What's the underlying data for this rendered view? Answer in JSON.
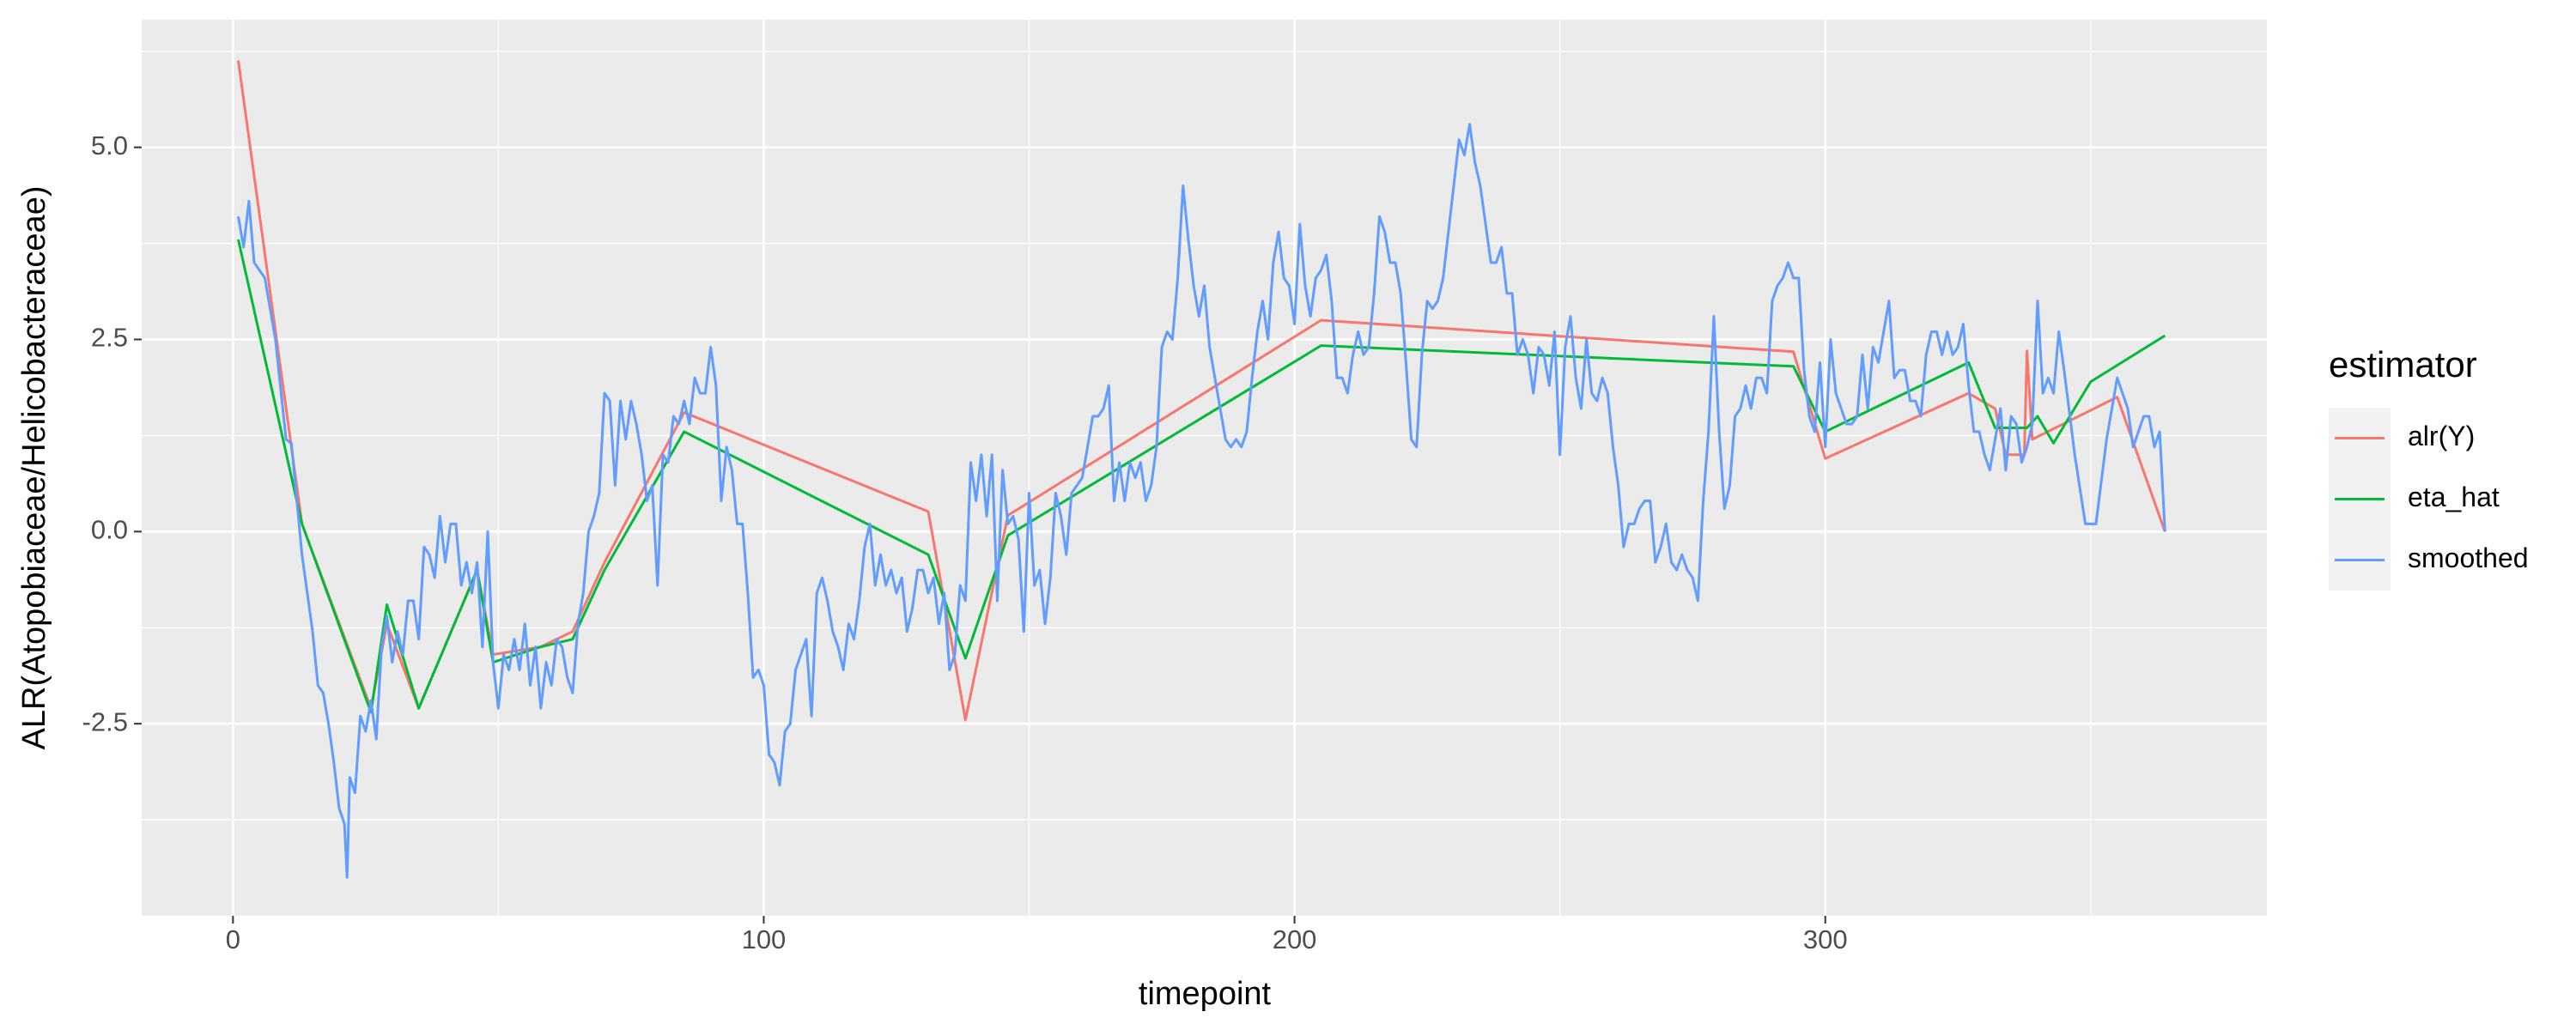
{
  "chart_data": {
    "type": "line",
    "x_label": "timepoint",
    "y_label": "ALR(Atopobiaceae/Helicobacteraceae)",
    "legend_title": "estimator",
    "legend_position": "right",
    "grid": true,
    "xlim": [
      -17.2,
      383.2
    ],
    "ylim": [
      -5.0,
      6.66
    ],
    "xticks": [
      0,
      100,
      200,
      300
    ],
    "yticks": [
      {
        "value": -2.5,
        "label": "-2.5"
      },
      {
        "value": 0,
        "label": "0.0"
      },
      {
        "value": 2.5,
        "label": "2.5"
      },
      {
        "value": 5,
        "label": "5.0"
      }
    ],
    "minor_xticks": [
      50,
      150,
      250,
      350
    ],
    "minor_yticks": [
      -3.75,
      -1.25,
      1.25,
      3.75,
      6.25
    ],
    "series": [
      {
        "name": "alr(Y)",
        "color": "#F8766D",
        "x": [
          1,
          13,
          26,
          29,
          35,
          46,
          49,
          58,
          64,
          70,
          85,
          131,
          138,
          146,
          205,
          294,
          300,
          327,
          332,
          334,
          337.5,
          338,
          339,
          355,
          364
        ],
        "values": [
          6.13,
          0.1,
          -2.3,
          -1.2,
          -2.3,
          -0.5,
          -1.6,
          -1.5,
          -1.3,
          -0.4,
          1.55,
          0.26,
          -2.45,
          0.21,
          2.75,
          2.34,
          0.95,
          1.8,
          1.6,
          1.0,
          1.0,
          2.35,
          1.2,
          1.75,
          0.0
        ]
      },
      {
        "name": "eta_hat",
        "color": "#00BA38",
        "x": [
          1,
          13,
          26,
          29,
          35,
          46,
          49,
          58,
          64,
          70,
          85,
          131,
          138,
          146,
          205,
          294,
          300,
          327,
          332,
          338,
          340,
          343,
          350,
          364
        ],
        "values": [
          3.8,
          0.1,
          -2.35,
          -0.95,
          -2.3,
          -0.5,
          -1.7,
          -1.5,
          -1.4,
          -0.5,
          1.3,
          -0.3,
          -1.65,
          -0.05,
          2.42,
          2.15,
          1.3,
          2.2,
          1.35,
          1.35,
          1.5,
          1.15,
          1.95,
          2.55
        ]
      },
      {
        "name": "smoothed",
        "color": "#619CFF",
        "x": [
          1,
          2,
          3,
          4,
          6,
          8,
          10,
          11,
          13,
          15,
          16,
          17,
          18,
          19,
          20,
          21,
          21.5,
          22,
          23,
          24,
          25,
          26,
          27,
          28,
          29,
          30,
          31,
          32,
          33,
          34,
          35,
          36,
          37,
          38,
          39,
          40,
          41,
          42,
          43,
          44,
          45,
          46,
          47,
          48,
          49,
          50,
          51,
          52,
          53,
          54,
          55,
          56,
          57,
          58,
          59,
          60,
          61,
          62,
          63,
          64,
          65,
          66,
          67,
          68,
          69,
          70,
          71,
          72,
          73,
          74,
          75,
          76,
          77,
          78,
          79,
          80,
          81,
          82,
          83,
          84,
          85,
          86,
          87,
          88,
          89,
          90,
          91,
          92,
          93,
          94,
          95,
          96,
          97,
          98,
          99,
          100,
          101,
          102,
          103,
          104,
          105,
          106,
          107,
          108,
          109,
          110,
          111,
          112,
          113,
          114,
          115,
          116,
          117,
          118,
          119,
          120,
          121,
          122,
          123,
          124,
          125,
          126,
          127,
          128,
          129,
          130,
          131,
          132,
          133,
          134,
          135,
          136,
          137,
          138,
          139,
          140,
          141,
          142,
          143,
          144,
          145,
          146,
          147,
          148,
          149,
          150,
          151,
          152,
          153,
          154,
          155,
          156,
          157,
          158,
          159,
          160,
          161,
          162,
          163,
          164,
          165,
          166,
          167,
          168,
          169,
          170,
          171,
          172,
          173,
          174,
          175,
          176,
          177,
          178,
          179,
          180,
          181,
          182,
          183,
          184,
          185,
          186,
          187,
          188,
          189,
          190,
          191,
          192,
          193,
          194,
          195,
          196,
          197,
          198,
          199,
          200,
          201,
          202,
          203,
          204,
          205,
          206,
          207,
          208,
          209,
          210,
          211,
          212,
          213,
          214,
          215,
          216,
          217,
          218,
          219,
          220,
          221,
          222,
          223,
          224,
          225,
          226,
          227,
          228,
          229,
          230,
          231,
          232,
          233,
          234,
          235,
          236,
          237,
          238,
          239,
          240,
          241,
          242,
          243,
          244,
          245,
          246,
          247,
          248,
          249,
          250,
          251,
          252,
          253,
          254,
          255,
          256,
          257,
          258,
          259,
          260,
          261,
          262,
          263,
          264,
          265,
          266,
          267,
          268,
          269,
          270,
          271,
          272,
          273,
          274,
          275,
          276,
          277,
          278,
          279,
          280,
          281,
          282,
          283,
          284,
          285,
          286,
          287,
          288,
          289,
          290,
          291,
          292,
          293,
          294,
          295,
          296,
          297,
          298,
          299,
          300,
          301,
          302,
          303,
          304,
          305,
          306,
          307,
          308,
          309,
          310,
          311,
          312,
          313,
          314,
          315,
          316,
          317,
          318,
          319,
          320,
          321,
          322,
          323,
          324,
          325,
          326,
          327,
          328,
          329,
          330,
          331,
          332,
          333,
          334,
          335,
          336,
          337,
          338,
          339,
          340,
          341,
          342,
          343,
          344,
          345,
          347,
          349,
          351,
          353,
          355,
          357,
          358,
          359,
          360,
          361,
          362,
          363,
          364
        ],
        "values": [
          4.1,
          3.7,
          4.3,
          3.5,
          3.3,
          2.5,
          1.2,
          1.15,
          -0.3,
          -1.3,
          -2.0,
          -2.1,
          -2.5,
          -3.0,
          -3.6,
          -3.8,
          -4.5,
          -3.2,
          -3.4,
          -2.4,
          -2.6,
          -2.2,
          -2.7,
          -1.5,
          -1.1,
          -1.7,
          -1.3,
          -1.6,
          -0.9,
          -0.9,
          -1.4,
          -0.2,
          -0.3,
          -0.6,
          0.2,
          -0.4,
          0.1,
          0.1,
          -0.7,
          -0.4,
          -0.8,
          -0.4,
          -1.5,
          0.0,
          -1.7,
          -2.3,
          -1.6,
          -1.8,
          -1.4,
          -1.8,
          -1.2,
          -2.0,
          -1.5,
          -2.3,
          -1.7,
          -2.0,
          -1.4,
          -1.5,
          -1.9,
          -2.1,
          -1.2,
          -0.8,
          0.0,
          0.2,
          0.5,
          1.8,
          1.7,
          0.6,
          1.7,
          1.2,
          1.7,
          1.4,
          1.0,
          0.4,
          0.6,
          -0.7,
          1.0,
          0.9,
          1.5,
          1.4,
          1.7,
          1.4,
          2.0,
          1.8,
          1.8,
          2.4,
          1.9,
          0.4,
          1.1,
          0.8,
          0.1,
          0.1,
          -0.8,
          -1.9,
          -1.8,
          -2.0,
          -2.9,
          -3.0,
          -3.3,
          -2.6,
          -2.5,
          -1.8,
          -1.6,
          -1.4,
          -2.4,
          -0.8,
          -0.6,
          -0.9,
          -1.3,
          -1.5,
          -1.8,
          -1.2,
          -1.4,
          -0.9,
          -0.2,
          0.1,
          -0.7,
          -0.3,
          -0.7,
          -0.5,
          -0.8,
          -0.6,
          -1.3,
          -1.0,
          -0.5,
          -0.5,
          -0.8,
          -0.6,
          -1.2,
          -0.8,
          -1.8,
          -1.6,
          -0.7,
          -0.9,
          0.9,
          0.4,
          1.0,
          0.2,
          1.0,
          -0.9,
          0.8,
          0.1,
          0.2,
          -0.1,
          -1.3,
          0.5,
          -0.7,
          -0.5,
          -1.2,
          -0.6,
          0.5,
          0.2,
          -0.3,
          0.5,
          0.6,
          0.7,
          1.1,
          1.5,
          1.5,
          1.6,
          1.9,
          0.4,
          0.9,
          0.4,
          0.9,
          0.7,
          0.9,
          0.4,
          0.6,
          1.1,
          2.4,
          2.6,
          2.5,
          3.3,
          4.5,
          3.8,
          3.2,
          2.8,
          3.2,
          2.4,
          2.0,
          1.6,
          1.2,
          1.1,
          1.2,
          1.1,
          1.3,
          2.0,
          2.6,
          3.0,
          2.5,
          3.5,
          3.9,
          3.3,
          3.2,
          2.7,
          4.0,
          3.2,
          2.8,
          3.3,
          3.4,
          3.6,
          3.0,
          2.0,
          2.0,
          1.8,
          2.3,
          2.6,
          2.3,
          2.4,
          3.1,
          4.1,
          3.9,
          3.5,
          3.5,
          3.1,
          2.2,
          1.2,
          1.1,
          2.3,
          3.0,
          2.9,
          3.0,
          3.3,
          3.9,
          4.5,
          5.1,
          4.9,
          5.3,
          4.8,
          4.5,
          4.0,
          3.5,
          3.5,
          3.7,
          3.1,
          3.1,
          2.3,
          2.5,
          2.3,
          1.8,
          2.4,
          2.3,
          1.9,
          2.6,
          1.0,
          2.4,
          2.8,
          2.0,
          1.6,
          2.5,
          1.8,
          1.7,
          2.0,
          1.8,
          1.1,
          0.6,
          -0.2,
          0.1,
          0.1,
          0.3,
          0.4,
          0.4,
          -0.4,
          -0.2,
          0.1,
          -0.4,
          -0.5,
          -0.3,
          -0.5,
          -0.6,
          -0.9,
          0.4,
          1.3,
          2.8,
          1.3,
          0.3,
          0.6,
          1.5,
          1.6,
          1.9,
          1.6,
          2.0,
          2.0,
          1.8,
          3.0,
          3.2,
          3.3,
          3.5,
          3.3,
          3.3,
          2.1,
          1.5,
          1.3,
          2.2,
          1.1,
          2.5,
          1.8,
          1.6,
          1.4,
          1.4,
          1.5,
          2.3,
          1.6,
          2.4,
          2.2,
          2.6,
          3.0,
          2.0,
          2.1,
          2.1,
          1.7,
          1.7,
          1.5,
          2.3,
          2.6,
          2.6,
          2.3,
          2.6,
          2.3,
          2.4,
          2.7,
          1.9,
          1.3,
          1.3,
          1.0,
          0.8,
          1.2,
          1.6,
          0.8,
          1.5,
          1.4,
          0.9,
          1.1,
          1.4,
          3.0,
          1.8,
          2.0,
          1.8,
          2.6,
          2.1,
          1.0,
          0.1,
          0.1,
          1.2,
          2.0,
          1.6,
          1.1,
          1.3,
          1.5,
          1.5,
          1.1,
          1.3,
          0.0
        ]
      }
    ]
  }
}
